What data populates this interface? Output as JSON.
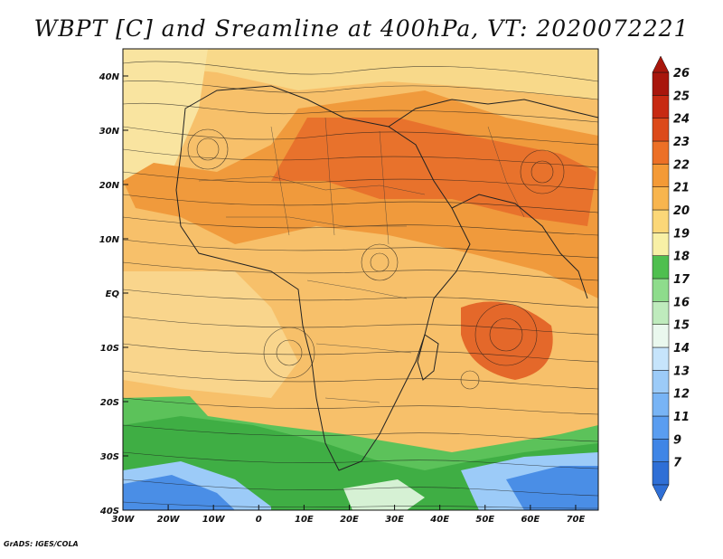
{
  "title": "WBPT [C] and Sreamline at 400hPa, VT: 2020072221",
  "credit": "GrADS: IGES/COLA",
  "map": {
    "lon_range": [
      -30,
      75
    ],
    "lat_range": [
      -40,
      45
    ],
    "x_ticks": [
      {
        "value": -30,
        "label": "30W"
      },
      {
        "value": -20,
        "label": "20W"
      },
      {
        "value": -10,
        "label": "10W"
      },
      {
        "value": 0,
        "label": "0"
      },
      {
        "value": 10,
        "label": "10E"
      },
      {
        "value": 20,
        "label": "20E"
      },
      {
        "value": 30,
        "label": "30E"
      },
      {
        "value": 40,
        "label": "40E"
      },
      {
        "value": 50,
        "label": "50E"
      },
      {
        "value": 60,
        "label": "60E"
      },
      {
        "value": 70,
        "label": "70E"
      }
    ],
    "y_ticks": [
      {
        "value": 40,
        "label": "40N"
      },
      {
        "value": 30,
        "label": "30N"
      },
      {
        "value": 20,
        "label": "20N"
      },
      {
        "value": 10,
        "label": "10N"
      },
      {
        "value": 0,
        "label": "EQ"
      },
      {
        "value": -10,
        "label": "10S"
      },
      {
        "value": -20,
        "label": "20S"
      },
      {
        "value": -30,
        "label": "30S"
      },
      {
        "value": -40,
        "label": "40S"
      }
    ]
  },
  "colorbar": {
    "labels": [
      "7",
      "9",
      "11",
      "12",
      "13",
      "14",
      "15",
      "16",
      "17",
      "18",
      "19",
      "20",
      "21",
      "22",
      "23",
      "24",
      "25",
      "26"
    ],
    "colors": [
      "#2f6fd6",
      "#3f85e6",
      "#5a9df0",
      "#78b4f5",
      "#9ccbf8",
      "#c6e4fb",
      "#eaf8ee",
      "#bfebbd",
      "#8edc8c",
      "#4fbf4f",
      "#f8f0a6",
      "#fbd778",
      "#f8b54e",
      "#f49a36",
      "#ec7026",
      "#dc4a1a",
      "#c72a12",
      "#a8160c"
    ]
  }
}
